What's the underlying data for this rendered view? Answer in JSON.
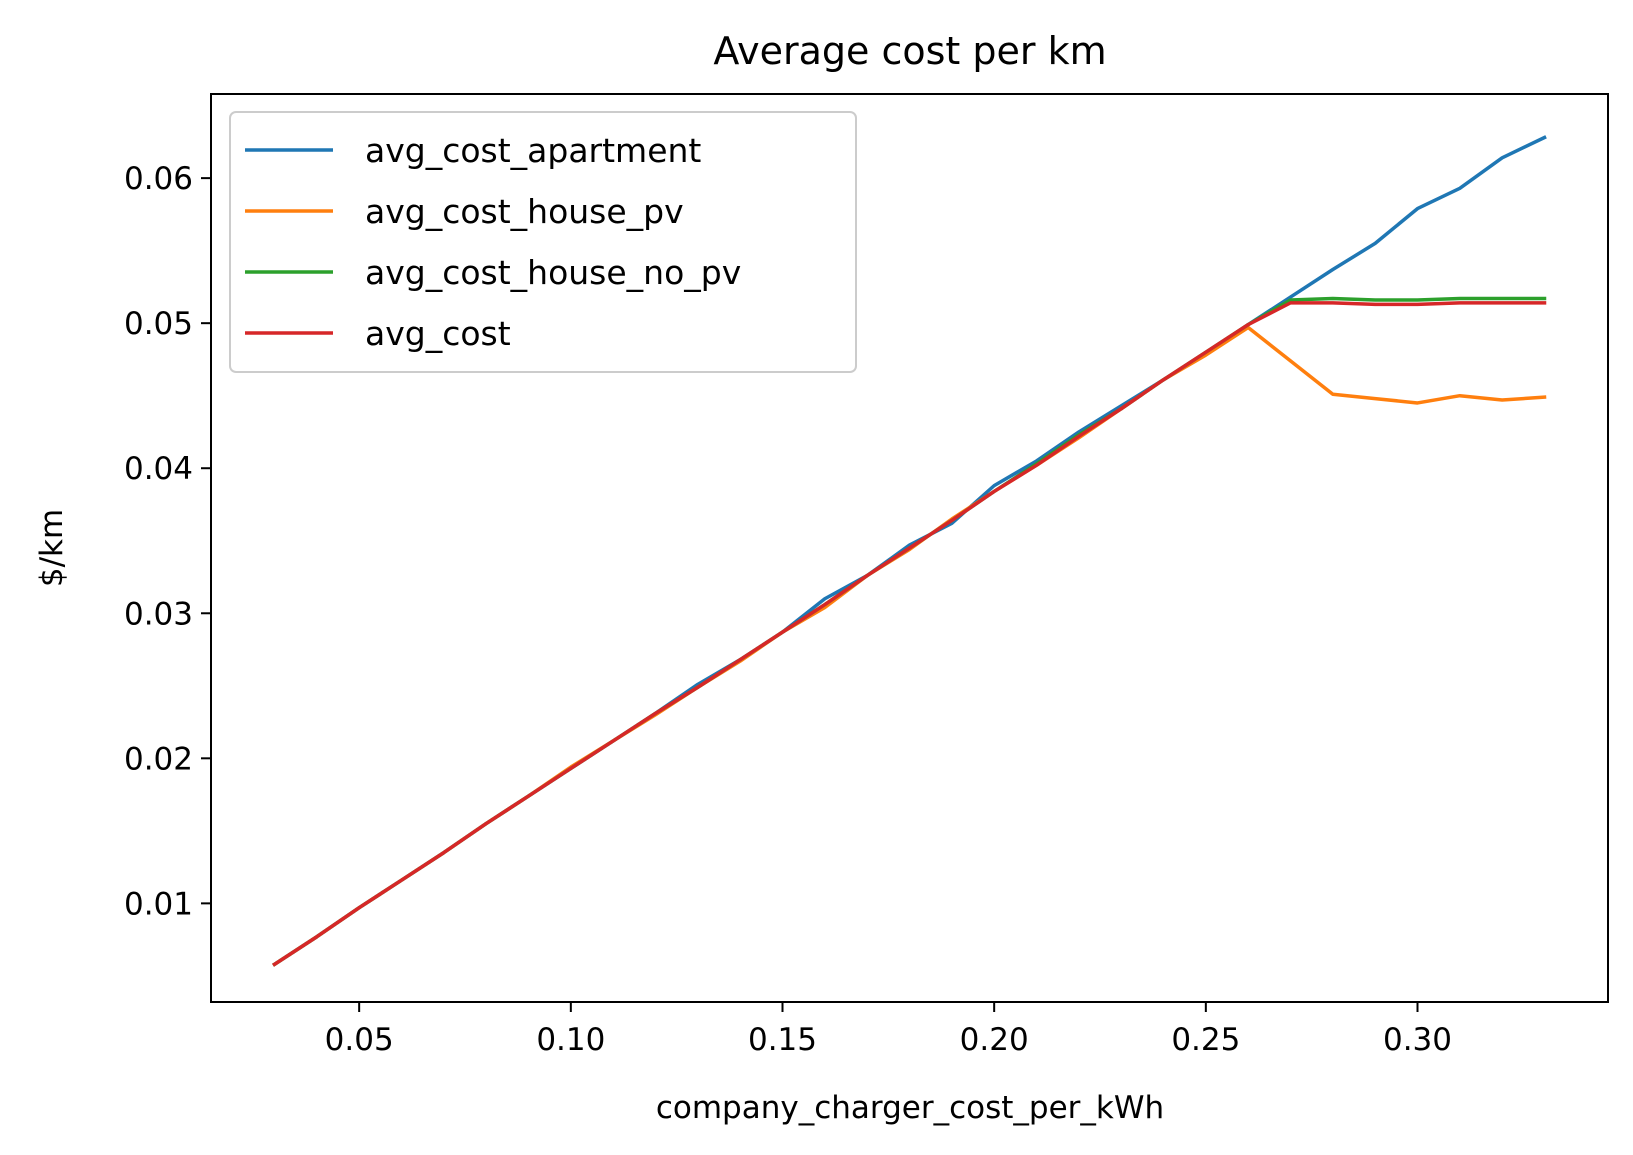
{
  "chart_data": {
    "type": "line",
    "title": "Average cost per km",
    "xlabel": "company_charger_cost_per_kWh",
    "ylabel": "$/km",
    "xlim": [
      0.015,
      0.345
    ],
    "ylim": [
      0.0032,
      0.0658
    ],
    "xticks": [
      0.05,
      0.1,
      0.15,
      0.2,
      0.25,
      0.3
    ],
    "xtick_labels": [
      "0.05",
      "0.10",
      "0.15",
      "0.20",
      "0.25",
      "0.30"
    ],
    "yticks": [
      0.01,
      0.02,
      0.03,
      0.04,
      0.05,
      0.06
    ],
    "ytick_labels": [
      "0.01",
      "0.02",
      "0.03",
      "0.04",
      "0.05",
      "0.06"
    ],
    "grid": false,
    "legend_position": "upper-left",
    "x": [
      0.03,
      0.04,
      0.05,
      0.06,
      0.07,
      0.08,
      0.09,
      0.1,
      0.11,
      0.12,
      0.13,
      0.14,
      0.15,
      0.16,
      0.17,
      0.18,
      0.19,
      0.2,
      0.21,
      0.22,
      0.23,
      0.24,
      0.25,
      0.26,
      0.27,
      0.28,
      0.29,
      0.3,
      0.31,
      0.32,
      0.33
    ],
    "series": [
      {
        "name": "avg_cost_apartment",
        "color": "#1f77b4",
        "values": [
          0.0058,
          0.0077,
          0.0097,
          0.0116,
          0.0135,
          0.0155,
          0.0174,
          0.0193,
          0.0212,
          0.0231,
          0.0251,
          0.0268,
          0.0287,
          0.031,
          0.0326,
          0.0347,
          0.0362,
          0.0388,
          0.0405,
          0.0425,
          0.0443,
          0.0461,
          0.0479,
          0.0499,
          0.0518,
          0.0537,
          0.0555,
          0.0579,
          0.0593,
          0.0614,
          0.0628
        ]
      },
      {
        "name": "avg_cost_house_pv",
        "color": "#ff7f0e",
        "values": [
          0.0058,
          0.0077,
          0.0097,
          0.0116,
          0.0135,
          0.0155,
          0.0174,
          0.0194,
          0.0212,
          0.023,
          0.0249,
          0.0267,
          0.0287,
          0.0304,
          0.0326,
          0.0344,
          0.0365,
          0.0384,
          0.0402,
          0.0421,
          0.0441,
          0.0461,
          0.0478,
          0.0497,
          0.0474,
          0.0451,
          0.0448,
          0.0445,
          0.045,
          0.0447,
          0.0449
        ]
      },
      {
        "name": "avg_cost_house_no_pv",
        "color": "#2ca02c",
        "values": [
          0.0058,
          0.0077,
          0.0097,
          0.0116,
          0.0135,
          0.0155,
          0.0174,
          0.0193,
          0.0212,
          0.0231,
          0.0249,
          0.0268,
          0.0287,
          0.0306,
          0.0326,
          0.0345,
          0.0364,
          0.0384,
          0.0403,
          0.0423,
          0.0441,
          0.0461,
          0.048,
          0.0499,
          0.0516,
          0.0517,
          0.0516,
          0.0516,
          0.0517,
          0.0517,
          0.0517
        ]
      },
      {
        "name": "avg_cost",
        "color": "#d62728",
        "values": [
          0.0058,
          0.0077,
          0.0097,
          0.0116,
          0.0135,
          0.0155,
          0.0174,
          0.0193,
          0.0212,
          0.0231,
          0.0249,
          0.0268,
          0.0287,
          0.0306,
          0.0326,
          0.0345,
          0.0364,
          0.0384,
          0.0402,
          0.0422,
          0.0441,
          0.0461,
          0.048,
          0.0499,
          0.0514,
          0.0514,
          0.0513,
          0.0513,
          0.0514,
          0.0514,
          0.0514
        ]
      }
    ]
  }
}
